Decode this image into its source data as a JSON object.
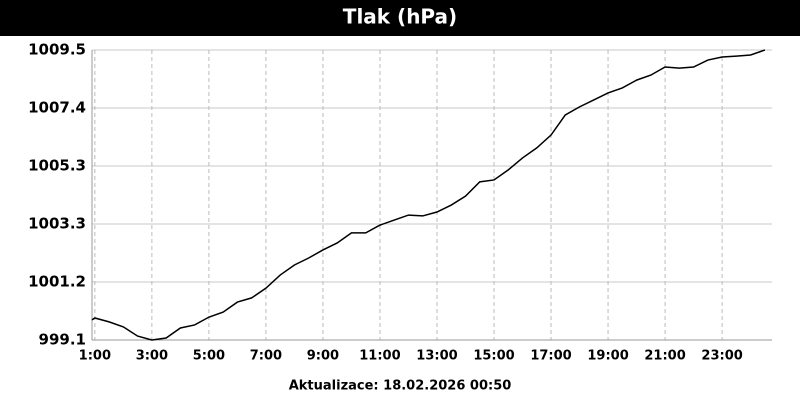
{
  "chart_data": {
    "type": "line",
    "title": "Tlak (hPa)",
    "footer": "Aktualizace: 18.02.2026 00:50",
    "x": [
      0.9,
      1,
      1.5,
      2,
      2.5,
      3,
      3.5,
      4,
      4.5,
      5,
      5.5,
      6,
      6.5,
      7,
      7.5,
      8,
      8.5,
      9,
      9.5,
      10,
      10.5,
      11,
      11.5,
      12,
      12.5,
      13,
      13.5,
      14,
      14.5,
      15,
      15.5,
      16,
      16.5,
      17,
      17.5,
      18,
      18.5,
      19,
      19.5,
      20,
      20.5,
      21,
      21.5,
      22,
      22.5,
      23,
      23.5,
      24,
      24.5
    ],
    "series": [
      {
        "name": "Tlak",
        "color": "#000000",
        "values": [
          999.82,
          999.89,
          999.75,
          999.57,
          999.24,
          999.1,
          999.17,
          999.53,
          999.64,
          999.92,
          1000.1,
          1000.46,
          1000.61,
          1000.96,
          1001.43,
          1001.79,
          1002.04,
          1002.33,
          1002.58,
          1002.94,
          1002.94,
          1003.22,
          1003.4,
          1003.58,
          1003.55,
          1003.69,
          1003.94,
          1004.26,
          1004.77,
          1004.84,
          1005.2,
          1005.63,
          1005.99,
          1006.45,
          1007.17,
          1007.46,
          1007.71,
          1007.96,
          1008.14,
          1008.42,
          1008.6,
          1008.89,
          1008.85,
          1008.89,
          1009.14,
          1009.25,
          1009.28,
          1009.32,
          1009.5
        ]
      }
    ],
    "xlim": [
      0.9,
      24.75
    ],
    "xticks": [
      {
        "value": 1,
        "label": "1:00"
      },
      {
        "value": 3,
        "label": "3:00"
      },
      {
        "value": 5,
        "label": "5:00"
      },
      {
        "value": 7,
        "label": "7:00"
      },
      {
        "value": 9,
        "label": "9:00"
      },
      {
        "value": 11,
        "label": "11:00"
      },
      {
        "value": 13,
        "label": "13:00"
      },
      {
        "value": 15,
        "label": "15:00"
      },
      {
        "value": 17,
        "label": "17:00"
      },
      {
        "value": 19,
        "label": "19:00"
      },
      {
        "value": 21,
        "label": "21:00"
      },
      {
        "value": 23,
        "label": "23:00"
      }
    ],
    "ylim": [
      999.1,
      1009.5
    ],
    "yticks": [
      999.1,
      {
        "value": 1001.18,
        "label": "1001.2"
      },
      {
        "value": 1003.26,
        "label": "1003.3"
      },
      {
        "value": 1005.34,
        "label": "1005.3"
      },
      {
        "value": 1007.42,
        "label": "1007.4"
      },
      1009.5
    ],
    "grid": true
  }
}
